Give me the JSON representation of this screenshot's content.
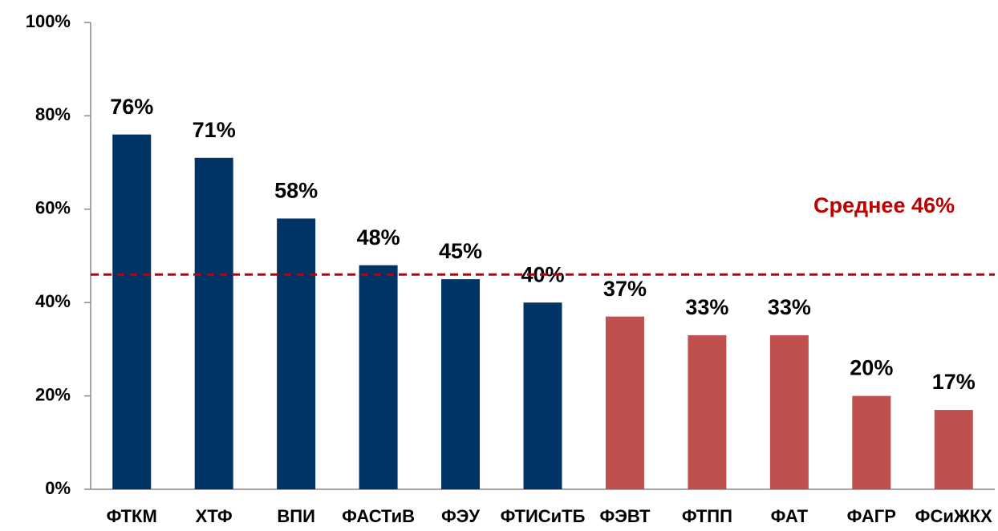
{
  "chart_data": {
    "type": "bar",
    "categories": [
      "ФТКМ",
      "ХТФ",
      "ВПИ",
      "ФАСТиВ",
      "ФЭУ",
      "ФТИСиТБ",
      "ФЭВТ",
      "ФТПП",
      "ФАТ",
      "ФАГР",
      "ФСиЖКХ"
    ],
    "values": [
      76,
      71,
      58,
      48,
      45,
      40,
      37,
      33,
      33,
      20,
      17
    ],
    "value_labels": [
      "76%",
      "71%",
      "58%",
      "48%",
      "45%",
      "40%",
      "37%",
      "33%",
      "33%",
      "20%",
      "17%"
    ],
    "colors": [
      "#003366",
      "#003366",
      "#003366",
      "#003366",
      "#003366",
      "#003366",
      "#c0504d",
      "#c0504d",
      "#c0504d",
      "#c0504d",
      "#c0504d"
    ],
    "ylim": [
      0,
      100
    ],
    "yticks": [
      {
        "value": 0,
        "label": "0%"
      },
      {
        "value": 20,
        "label": "20%"
      },
      {
        "value": 40,
        "label": "40%"
      },
      {
        "value": 60,
        "label": "60%"
      },
      {
        "value": 80,
        "label": "80%"
      },
      {
        "value": 100,
        "label": "100%"
      }
    ],
    "average": {
      "value": 46,
      "label": "Среднее 46%",
      "color": "#c00000"
    },
    "grid": false
  }
}
